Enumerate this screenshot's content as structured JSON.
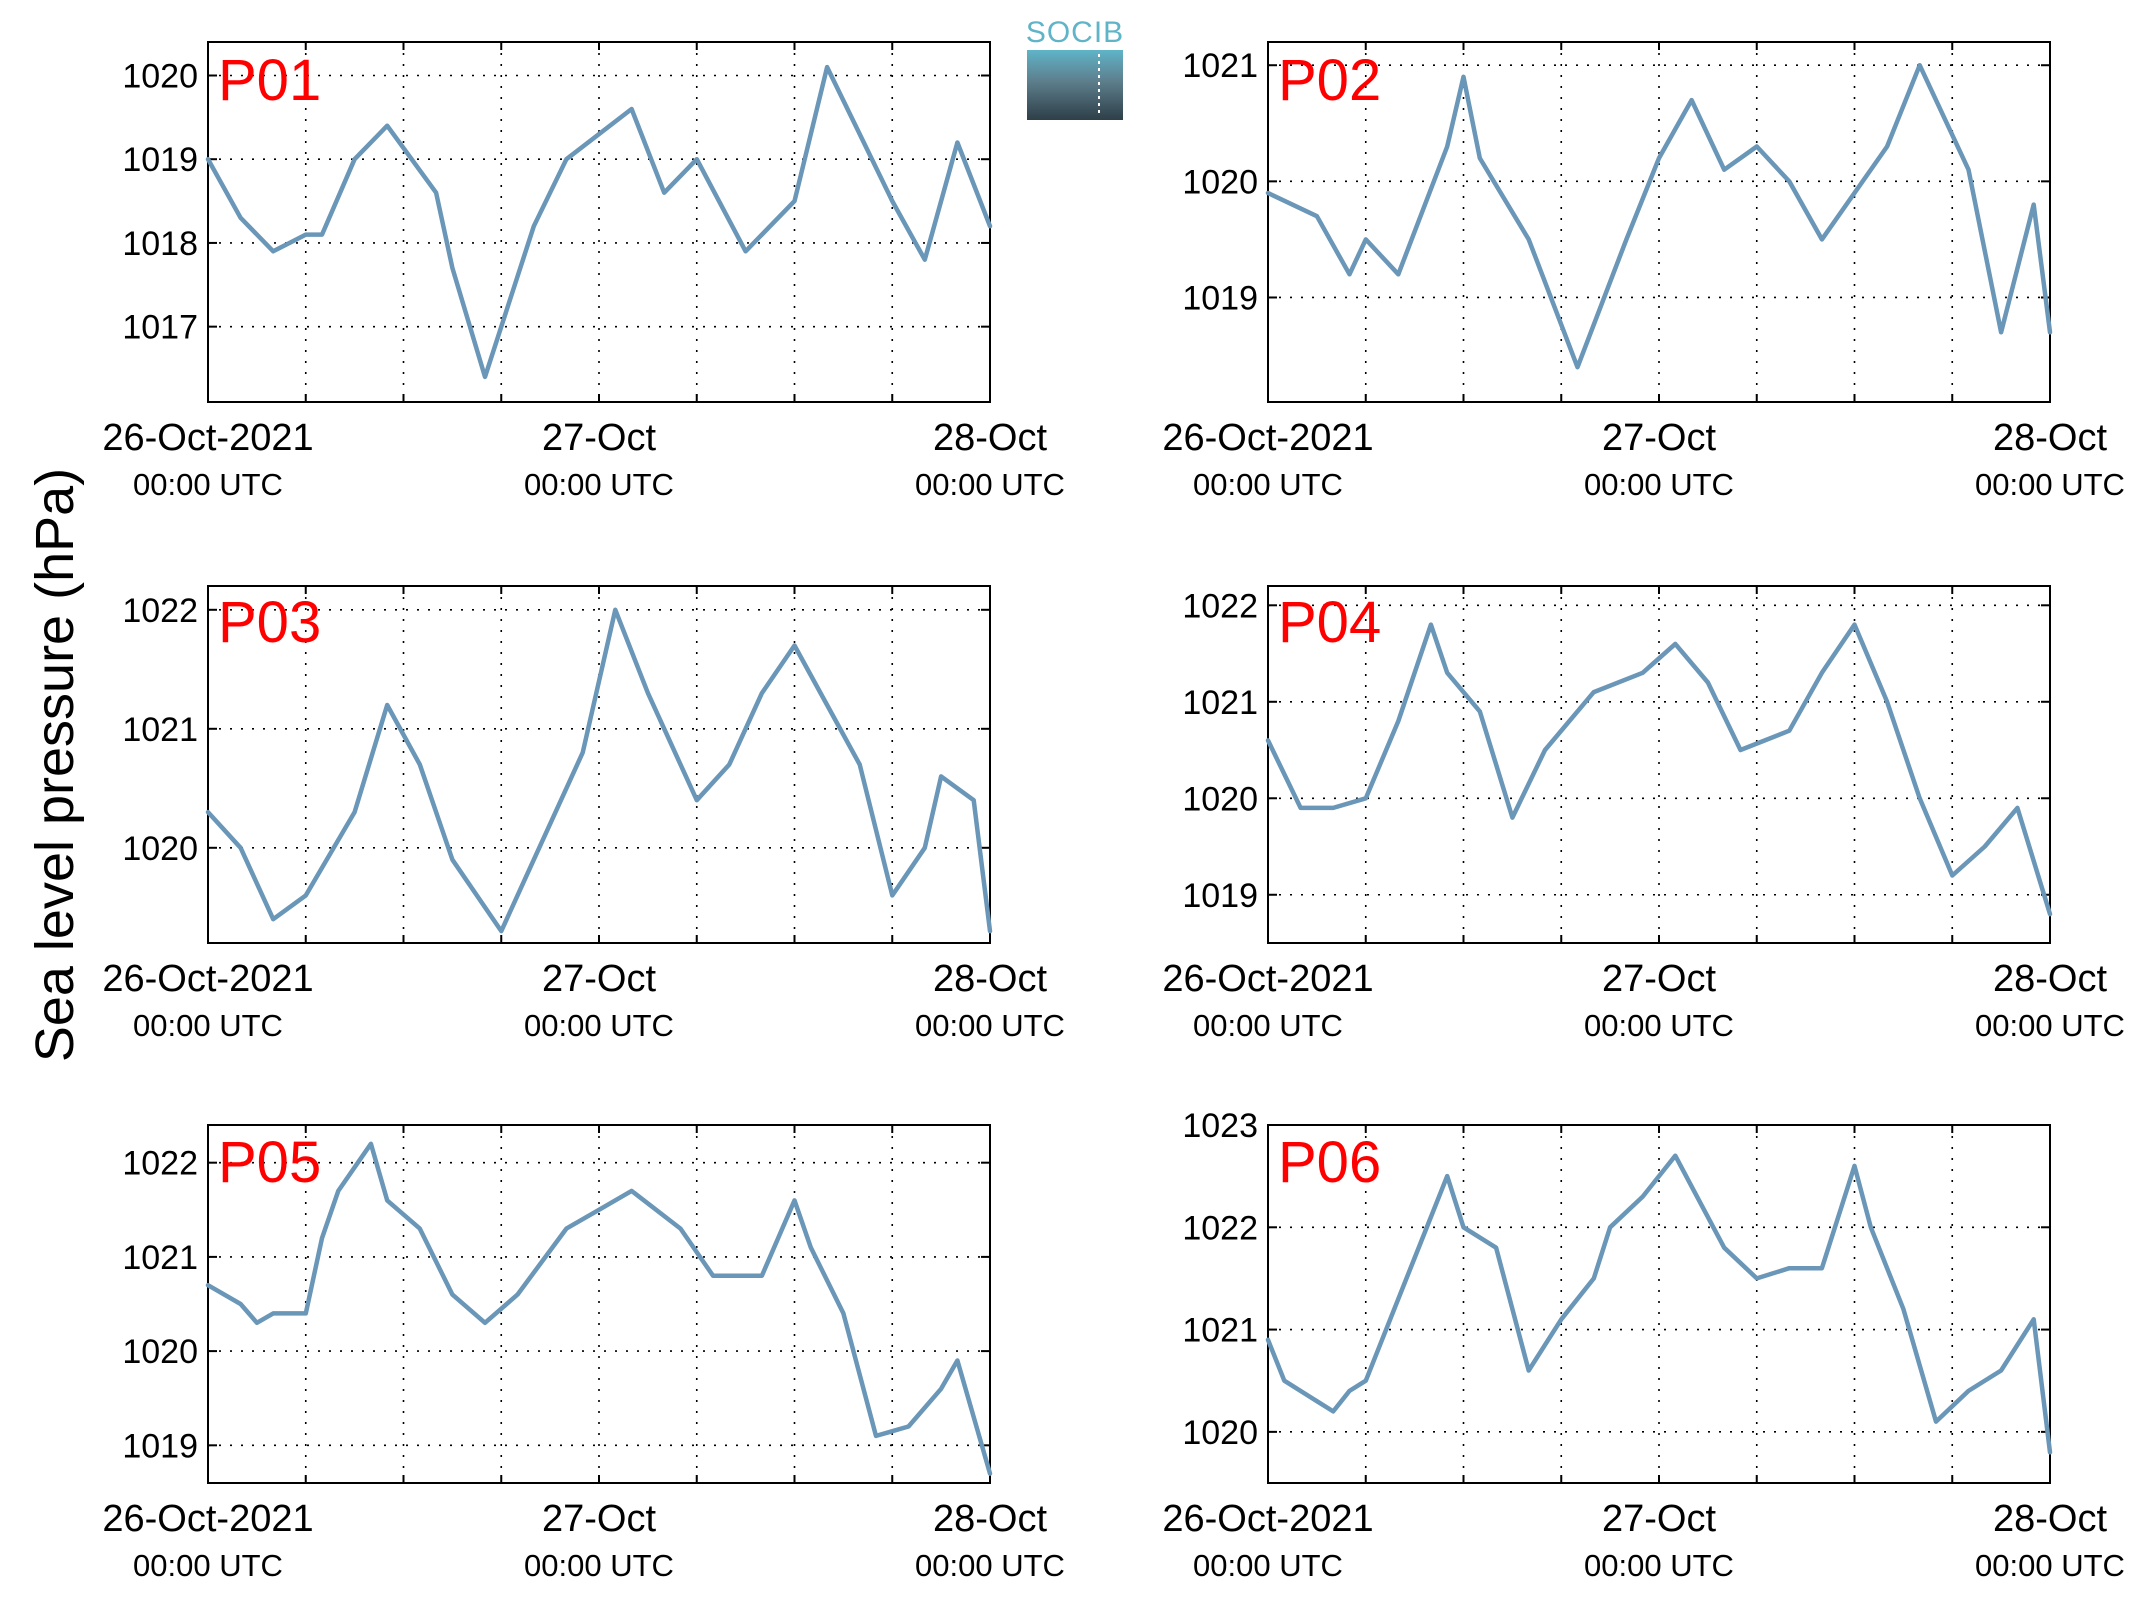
{
  "logo": {
    "text": "SOCIB"
  },
  "ylabel": "Sea level pressure (hPa)",
  "colors": {
    "line": "#6a96b8",
    "label": "#ff0000"
  },
  "x_tick_labels": [
    {
      "date": "26-Oct-2021",
      "time": "00:00 UTC"
    },
    {
      "date": "27-Oct",
      "time": "00:00 UTC"
    },
    {
      "date": "28-Oct",
      "time": "00:00 UTC"
    }
  ],
  "chart_data": [
    {
      "type": "line",
      "panel": "P01",
      "ylim": [
        1016.1,
        1020.4
      ],
      "yticks": [
        1017,
        1018,
        1019,
        1020
      ],
      "grid": true,
      "x": [
        "2021-10-26T00:00",
        "2021-10-26T02:00",
        "2021-10-26T04:00",
        "2021-10-26T06:00",
        "2021-10-26T07:00",
        "2021-10-26T09:00",
        "2021-10-26T11:00",
        "2021-10-26T14:00",
        "2021-10-26T15:00",
        "2021-10-26T17:00",
        "2021-10-26T20:00",
        "2021-10-26T22:00",
        "2021-10-27T02:00",
        "2021-10-27T04:00",
        "2021-10-27T06:00",
        "2021-10-27T09:00",
        "2021-10-27T12:00",
        "2021-10-27T14:00",
        "2021-10-27T18:00",
        "2021-10-27T20:00",
        "2021-10-27T22:00",
        "2021-10-28T00:00"
      ],
      "y": [
        1019.0,
        1018.3,
        1017.9,
        1018.1,
        1018.1,
        1019.0,
        1019.4,
        1018.6,
        1017.7,
        1016.4,
        1018.2,
        1019.0,
        1019.6,
        1018.6,
        1019.0,
        1017.9,
        1018.5,
        1020.1,
        1018.5,
        1017.8,
        1019.2,
        1018.2
      ]
    },
    {
      "type": "line",
      "panel": "P02",
      "ylim": [
        1018.1,
        1021.2
      ],
      "yticks": [
        1019,
        1020,
        1021
      ],
      "grid": true,
      "x": [
        "2021-10-26T00:00",
        "2021-10-26T03:00",
        "2021-10-26T05:00",
        "2021-10-26T06:00",
        "2021-10-26T08:00",
        "2021-10-26T11:00",
        "2021-10-26T12:00",
        "2021-10-26T13:00",
        "2021-10-26T16:00",
        "2021-10-26T19:00",
        "2021-10-26T22:00",
        "2021-10-27T00:00",
        "2021-10-27T02:00",
        "2021-10-27T04:00",
        "2021-10-27T06:00",
        "2021-10-27T08:00",
        "2021-10-27T10:00",
        "2021-10-27T14:00",
        "2021-10-27T16:00",
        "2021-10-27T19:00",
        "2021-10-27T21:00",
        "2021-10-27T23:00",
        "2021-10-28T00:00"
      ],
      "y": [
        1019.9,
        1019.7,
        1019.2,
        1019.5,
        1019.2,
        1020.3,
        1020.9,
        1020.2,
        1019.5,
        1018.4,
        1019.5,
        1020.2,
        1020.7,
        1020.1,
        1020.3,
        1020.0,
        1019.5,
        1020.3,
        1021.0,
        1020.1,
        1018.7,
        1019.8,
        1018.7
      ]
    },
    {
      "type": "line",
      "panel": "P03",
      "ylim": [
        1019.2,
        1022.2
      ],
      "yticks": [
        1020,
        1021,
        1022
      ],
      "grid": true,
      "x": [
        "2021-10-26T00:00",
        "2021-10-26T02:00",
        "2021-10-26T04:00",
        "2021-10-26T06:00",
        "2021-10-26T09:00",
        "2021-10-26T11:00",
        "2021-10-26T13:00",
        "2021-10-26T15:00",
        "2021-10-26T18:00",
        "2021-10-26T20:00",
        "2021-10-26T23:00",
        "2021-10-27T01:00",
        "2021-10-27T03:00",
        "2021-10-27T06:00",
        "2021-10-27T08:00",
        "2021-10-27T10:00",
        "2021-10-27T12:00",
        "2021-10-27T14:00",
        "2021-10-27T16:00",
        "2021-10-27T18:00",
        "2021-10-27T20:00",
        "2021-10-27T21:00",
        "2021-10-27T23:00",
        "2021-10-28T00:00"
      ],
      "y": [
        1020.3,
        1020.0,
        1019.4,
        1019.6,
        1020.3,
        1021.2,
        1020.7,
        1019.9,
        1019.3,
        1019.9,
        1020.8,
        1022.0,
        1021.3,
        1020.4,
        1020.7,
        1021.3,
        1021.7,
        1021.2,
        1020.7,
        1019.6,
        1020.0,
        1020.6,
        1020.4,
        1019.3
      ]
    },
    {
      "type": "line",
      "panel": "P04",
      "ylim": [
        1018.5,
        1022.2
      ],
      "yticks": [
        1019,
        1020,
        1021,
        1022
      ],
      "grid": true,
      "x": [
        "2021-10-26T00:00",
        "2021-10-26T02:00",
        "2021-10-26T04:00",
        "2021-10-26T06:00",
        "2021-10-26T08:00",
        "2021-10-26T10:00",
        "2021-10-26T11:00",
        "2021-10-26T13:00",
        "2021-10-26T15:00",
        "2021-10-26T17:00",
        "2021-10-26T20:00",
        "2021-10-26T23:00",
        "2021-10-27T01:00",
        "2021-10-27T03:00",
        "2021-10-27T05:00",
        "2021-10-27T08:00",
        "2021-10-27T10:00",
        "2021-10-27T12:00",
        "2021-10-27T14:00",
        "2021-10-27T16:00",
        "2021-10-27T18:00",
        "2021-10-27T20:00",
        "2021-10-27T22:00",
        "2021-10-28T00:00"
      ],
      "y": [
        1020.6,
        1019.9,
        1019.9,
        1020.0,
        1020.8,
        1021.8,
        1021.3,
        1020.9,
        1019.8,
        1020.5,
        1021.1,
        1021.3,
        1021.6,
        1021.2,
        1020.5,
        1020.7,
        1021.3,
        1021.8,
        1021.0,
        1020.0,
        1019.2,
        1019.5,
        1019.9,
        1018.8
      ]
    },
    {
      "type": "line",
      "panel": "P05",
      "ylim": [
        1018.6,
        1022.4
      ],
      "yticks": [
        1019,
        1020,
        1021,
        1022
      ],
      "grid": true,
      "x": [
        "2021-10-26T00:00",
        "2021-10-26T02:00",
        "2021-10-26T03:00",
        "2021-10-26T04:00",
        "2021-10-26T06:00",
        "2021-10-26T07:00",
        "2021-10-26T08:00",
        "2021-10-26T10:00",
        "2021-10-26T11:00",
        "2021-10-26T13:00",
        "2021-10-26T15:00",
        "2021-10-26T17:00",
        "2021-10-26T19:00",
        "2021-10-26T22:00",
        "2021-10-27T00:00",
        "2021-10-27T02:00",
        "2021-10-27T05:00",
        "2021-10-27T07:00",
        "2021-10-27T08:00",
        "2021-10-27T10:00",
        "2021-10-27T12:00",
        "2021-10-27T13:00",
        "2021-10-27T15:00",
        "2021-10-27T17:00",
        "2021-10-27T19:00",
        "2021-10-27T21:00",
        "2021-10-27T22:00",
        "2021-10-28T00:00"
      ],
      "y": [
        1020.7,
        1020.5,
        1020.3,
        1020.4,
        1020.4,
        1021.2,
        1021.7,
        1022.2,
        1021.6,
        1021.3,
        1020.6,
        1020.3,
        1020.6,
        1021.3,
        1021.5,
        1021.7,
        1021.3,
        1020.8,
        1020.8,
        1020.8,
        1021.6,
        1021.1,
        1020.4,
        1019.1,
        1019.2,
        1019.6,
        1019.9,
        1018.7
      ]
    },
    {
      "type": "line",
      "panel": "P06",
      "ylim": [
        1019.5,
        1023.0
      ],
      "yticks": [
        1020,
        1021,
        1022,
        1023
      ],
      "grid": true,
      "x": [
        "2021-10-26T00:00",
        "2021-10-26T01:00",
        "2021-10-26T03:00",
        "2021-10-26T04:00",
        "2021-10-26T05:00",
        "2021-10-26T06:00",
        "2021-10-26T08:00",
        "2021-10-26T09:00",
        "2021-10-26T11:00",
        "2021-10-26T12:00",
        "2021-10-26T14:00",
        "2021-10-26T16:00",
        "2021-10-26T18:00",
        "2021-10-26T20:00",
        "2021-10-26T21:00",
        "2021-10-26T23:00",
        "2021-10-27T01:00",
        "2021-10-27T02:00",
        "2021-10-27T04:00",
        "2021-10-27T06:00",
        "2021-10-27T08:00",
        "2021-10-27T10:00",
        "2021-10-27T12:00",
        "2021-10-27T13:00",
        "2021-10-27T15:00",
        "2021-10-27T17:00",
        "2021-10-27T19:00",
        "2021-10-27T21:00",
        "2021-10-27T23:00",
        "2021-10-28T00:00"
      ],
      "y": [
        1020.9,
        1020.5,
        1020.3,
        1020.2,
        1020.4,
        1020.5,
        1021.3,
        1021.7,
        1022.5,
        1022.0,
        1021.8,
        1020.6,
        1021.1,
        1021.5,
        1022.0,
        1022.3,
        1022.7,
        1022.4,
        1021.8,
        1021.5,
        1021.6,
        1021.6,
        1022.6,
        1022.0,
        1021.2,
        1020.1,
        1020.4,
        1020.6,
        1021.1,
        1019.8
      ]
    }
  ]
}
